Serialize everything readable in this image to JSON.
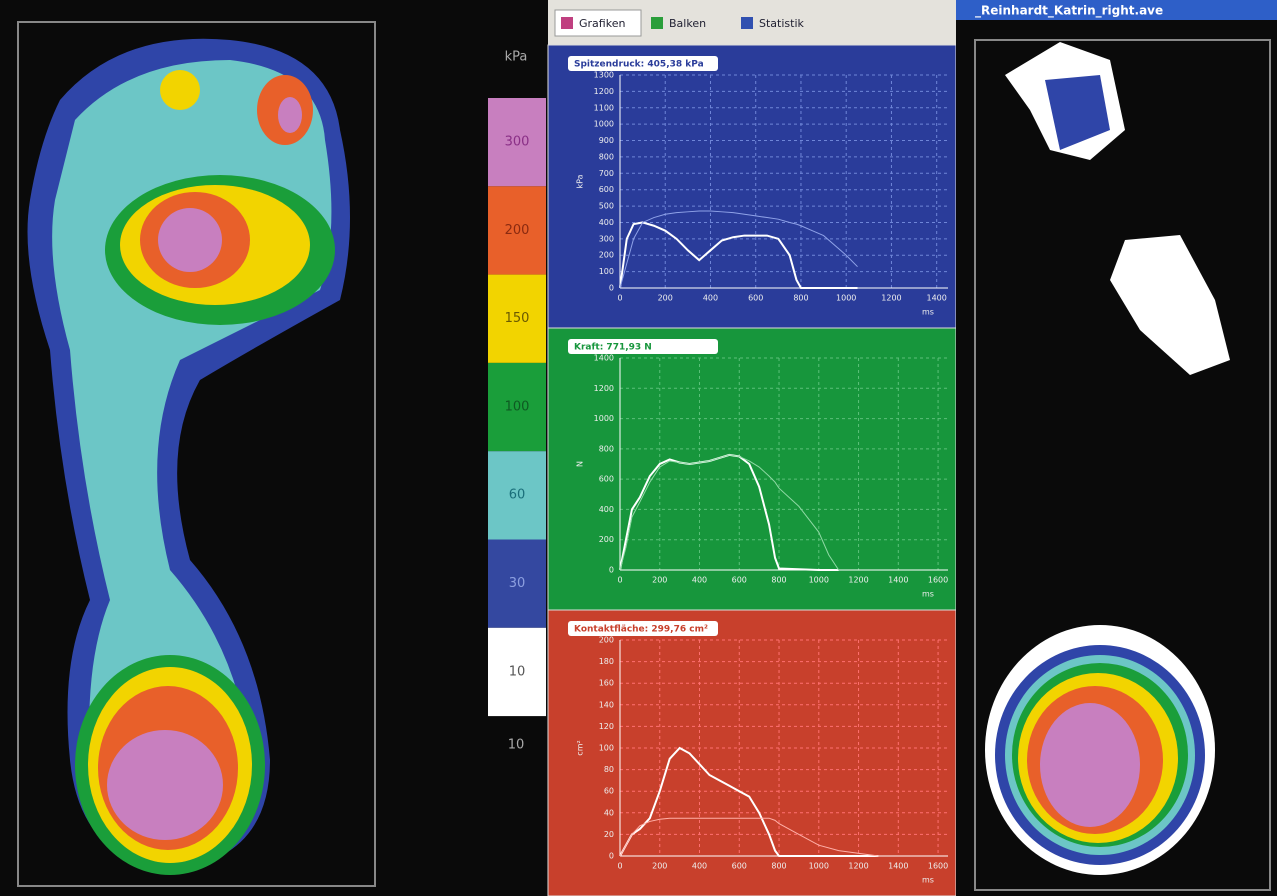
{
  "tabs": [
    "Grafiken",
    "Balken",
    "Statistik"
  ],
  "window_title": "_Reinhardt_Katrin_right.ave",
  "legend": {
    "unit": "kPa",
    "labels": [
      "300",
      "200",
      "150",
      "100",
      "60",
      "30",
      "10"
    ],
    "footer": "10"
  },
  "chart_data": [
    {
      "type": "line",
      "title": "Spitzendruck: 405,38 kPa",
      "ylabel": "kPa",
      "xlabel": "ms",
      "xlim": [
        0,
        1450
      ],
      "ylim": [
        0,
        1300
      ],
      "xticks": [
        0,
        200,
        400,
        600,
        800,
        1000,
        1200,
        1400
      ],
      "yticks": [
        0,
        100,
        200,
        300,
        400,
        500,
        600,
        700,
        800,
        900,
        1000,
        1100,
        1200,
        1300
      ],
      "background": "#2a3c9a",
      "grid_color": "#6f86d8",
      "x": [
        0,
        30,
        60,
        100,
        150,
        200,
        250,
        300,
        350,
        400,
        450,
        500,
        550,
        600,
        650,
        700,
        750,
        780,
        800,
        850,
        900,
        1000,
        1050
      ],
      "series": [
        {
          "color": "#ffffff",
          "values": [
            0,
            300,
            390,
            400,
            380,
            350,
            300,
            230,
            170,
            230,
            290,
            310,
            320,
            320,
            320,
            300,
            200,
            50,
            0,
            0,
            0,
            0,
            0
          ]
        },
        {
          "color": "#8fa2e8",
          "values": [
            0,
            150,
            300,
            400,
            430,
            450,
            460,
            465,
            470,
            470,
            465,
            460,
            450,
            440,
            430,
            420,
            400,
            390,
            380,
            350,
            320,
            200,
            130
          ]
        }
      ]
    },
    {
      "type": "line",
      "title": "Kraft: 771,93 N",
      "ylabel": "N",
      "xlabel": "ms",
      "xlim": [
        0,
        1650
      ],
      "ylim": [
        0,
        1400
      ],
      "xticks": [
        0,
        200,
        400,
        600,
        800,
        1000,
        1200,
        1400,
        1600
      ],
      "yticks": [
        0,
        200,
        400,
        600,
        800,
        1000,
        1200,
        1400
      ],
      "background": "#17963c",
      "grid_color": "#5cc07a",
      "x": [
        0,
        30,
        60,
        100,
        150,
        200,
        250,
        300,
        350,
        400,
        450,
        500,
        550,
        600,
        650,
        700,
        750,
        780,
        800,
        900,
        1000,
        1050,
        1100
      ],
      "series": [
        {
          "color": "#ffffff",
          "values": [
            0,
            200,
            400,
            480,
            620,
            700,
            730,
            710,
            700,
            710,
            720,
            740,
            760,
            750,
            700,
            550,
            300,
            80,
            10,
            5,
            0,
            0,
            0
          ]
        },
        {
          "color": "#8fd9a4",
          "values": [
            0,
            150,
            350,
            450,
            580,
            680,
            720,
            710,
            700,
            710,
            720,
            740,
            760,
            750,
            720,
            680,
            620,
            580,
            540,
            420,
            250,
            100,
            0
          ]
        }
      ]
    },
    {
      "type": "line",
      "title": "Kontaktfläche: 299,76 cm²",
      "ylabel": "cm²",
      "xlabel": "ms",
      "xlim": [
        0,
        1650
      ],
      "ylim": [
        0,
        200
      ],
      "xticks": [
        0,
        200,
        400,
        600,
        800,
        1000,
        1200,
        1400,
        1600
      ],
      "yticks": [
        0,
        20,
        40,
        60,
        80,
        100,
        120,
        140,
        160,
        180,
        200
      ],
      "background": "#c8402c",
      "grid_color": "#ff7070",
      "x": [
        0,
        30,
        60,
        100,
        150,
        200,
        250,
        300,
        350,
        400,
        450,
        500,
        550,
        600,
        650,
        700,
        750,
        780,
        800,
        900,
        1000,
        1100,
        1300
      ],
      "series": [
        {
          "color": "#ffffff",
          "values": [
            0,
            10,
            20,
            25,
            35,
            60,
            90,
            100,
            95,
            85,
            75,
            70,
            65,
            60,
            55,
            40,
            20,
            5,
            0,
            0,
            0,
            0,
            0
          ]
        },
        {
          "color": "#ffb0a8",
          "values": [
            0,
            10,
            20,
            28,
            32,
            34,
            35,
            35,
            35,
            35,
            35,
            35,
            35,
            35,
            35,
            35,
            35,
            33,
            30,
            20,
            10,
            5,
            0
          ]
        }
      ]
    }
  ]
}
